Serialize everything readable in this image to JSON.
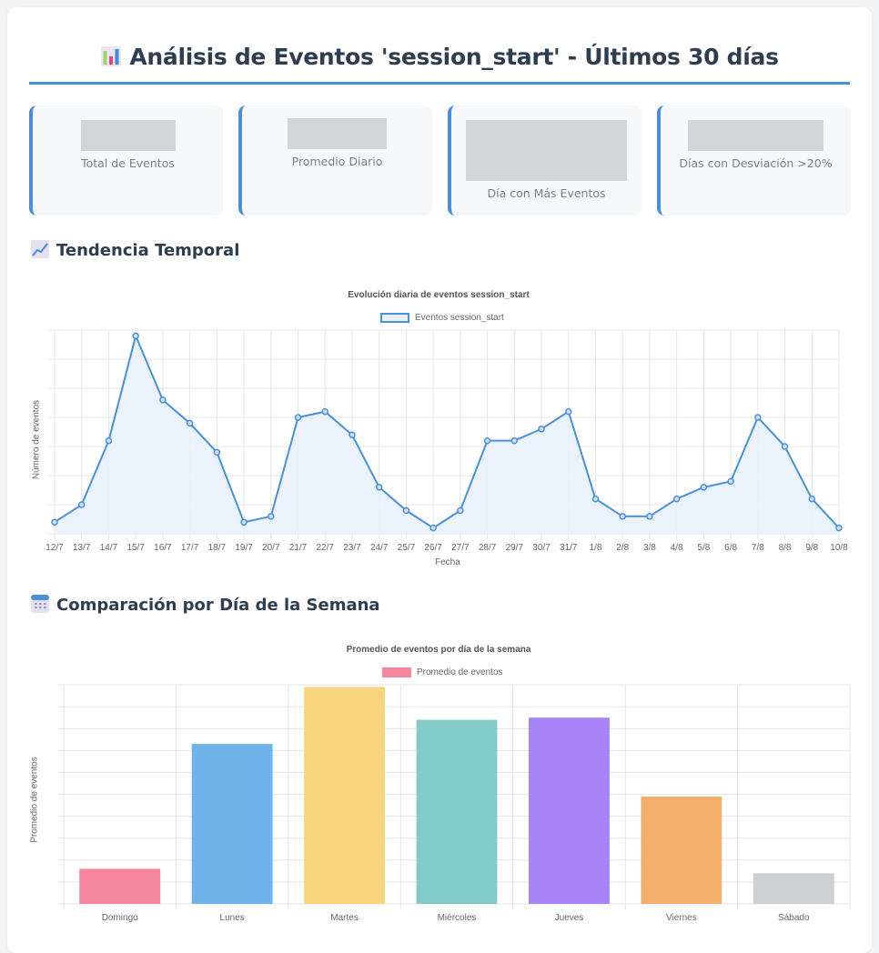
{
  "header": {
    "title": "Análisis de Eventos 'session_start' - Últimos 30 días",
    "icon": "bar-chart-icon"
  },
  "stats": [
    {
      "label": "Total de Eventos",
      "value": ""
    },
    {
      "label": "Promedio Diario",
      "value": ""
    },
    {
      "label": "Día con Más Eventos",
      "value": ""
    },
    {
      "label": "Días con Desviación >20%",
      "value": ""
    }
  ],
  "sections": {
    "trend": {
      "title": "Tendencia Temporal",
      "icon": "chart-increasing-icon"
    },
    "weekday": {
      "title": "Comparación por Día de la Semana",
      "icon": "calendar-icon"
    }
  },
  "colors": {
    "accent": "#4a90d9",
    "line": "#4a90d9",
    "line_fill": "#e8f1fb",
    "bars": [
      "#f4869e",
      "#6fb3ea",
      "#f9d47f",
      "#83cbc9",
      "#a884f9",
      "#f5af6c",
      "#cfd0d2"
    ]
  },
  "chart_data": [
    {
      "type": "line",
      "title": "Evolución diaria de eventos session_start",
      "legend": [
        "Eventos session_start"
      ],
      "legend_position": "top",
      "xlabel": "Fecha",
      "ylabel": "Número de eventos",
      "grid": true,
      "y_tick_labels_visible": false,
      "ylim": [
        0,
        7
      ],
      "x": [
        "12/7",
        "13/7",
        "14/7",
        "15/7",
        "16/7",
        "17/7",
        "18/7",
        "19/7",
        "20/7",
        "21/7",
        "22/7",
        "23/7",
        "24/7",
        "25/7",
        "26/7",
        "27/7",
        "28/7",
        "29/7",
        "30/7",
        "31/7",
        "1/8",
        "2/8",
        "3/8",
        "4/8",
        "5/8",
        "6/8",
        "7/8",
        "8/8",
        "9/8",
        "10/8"
      ],
      "series": [
        {
          "name": "Eventos session_start",
          "values": [
            0.4,
            1.0,
            3.2,
            6.8,
            4.6,
            3.8,
            2.8,
            0.4,
            0.6,
            4.0,
            4.2,
            3.4,
            1.6,
            0.8,
            0.2,
            0.8,
            3.2,
            3.2,
            3.6,
            4.2,
            1.2,
            0.6,
            0.6,
            1.2,
            1.6,
            1.8,
            4.0,
            3.0,
            1.2,
            0.2
          ]
        }
      ]
    },
    {
      "type": "bar",
      "title": "Promedio de eventos por día de la semana",
      "legend": [
        "Promedio de eventos"
      ],
      "legend_position": "top",
      "xlabel": "",
      "ylabel": "Promedio de eventos",
      "grid": true,
      "y_tick_labels_visible": false,
      "ylim": [
        0,
        10
      ],
      "categories": [
        "Domingo",
        "Lunes",
        "Martes",
        "Miércoles",
        "Jueves",
        "Viernes",
        "Sábado"
      ],
      "values": [
        1.6,
        7.3,
        9.9,
        8.4,
        8.5,
        4.9,
        1.4
      ]
    }
  ]
}
